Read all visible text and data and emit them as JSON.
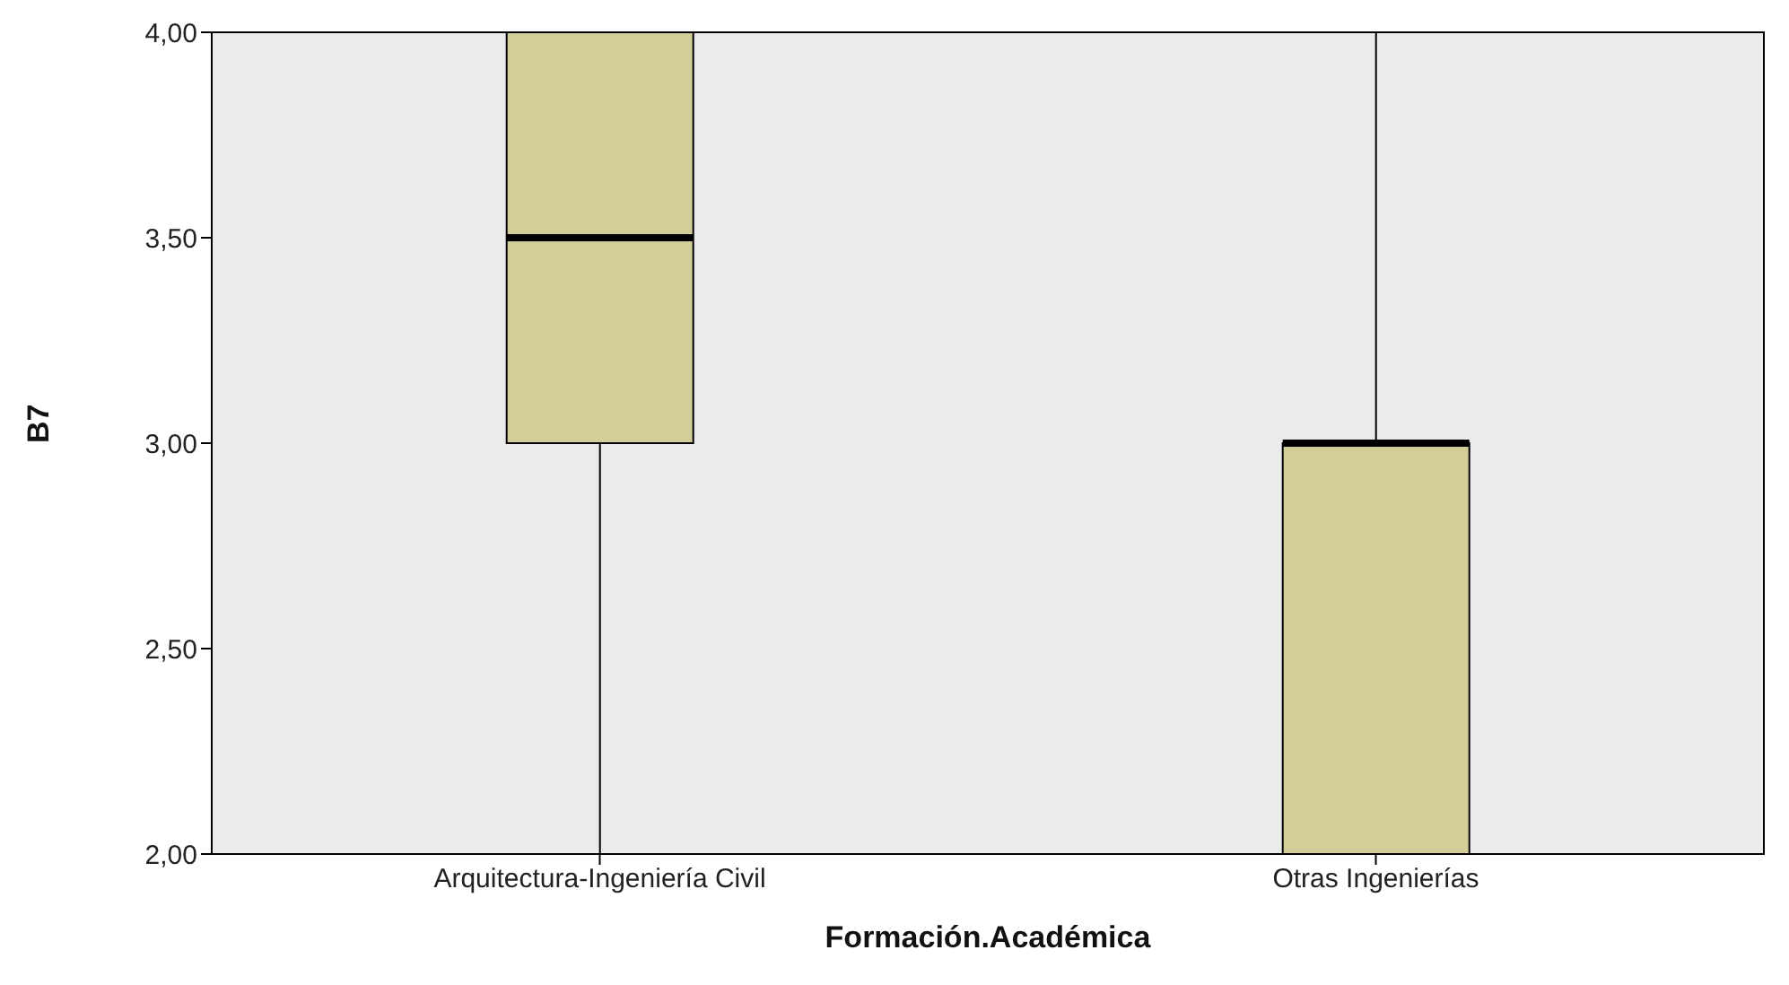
{
  "chart_data": {
    "type": "box",
    "categories": [
      "Arquitectura-Ingeniería Civil",
      "Otras Ingenierías"
    ],
    "boxes": [
      {
        "low": 2,
        "q1": 3,
        "median": 3.5,
        "q3": 4,
        "high": 4
      },
      {
        "low": 2,
        "q1": 2,
        "median": 3,
        "q3": 3,
        "high": 4
      }
    ],
    "color": "#d3ce97",
    "xlabel": "Formación.Académica",
    "ylabel": "B7",
    "ylim": [
      2,
      4
    ],
    "yticks": [
      {
        "value": 2,
        "label": "2,00"
      },
      {
        "value": 2.5,
        "label": "2,50"
      },
      {
        "value": 3,
        "label": "3,00"
      },
      {
        "value": 3.5,
        "label": "3,50"
      },
      {
        "value": 4,
        "label": "4,00"
      }
    ]
  }
}
